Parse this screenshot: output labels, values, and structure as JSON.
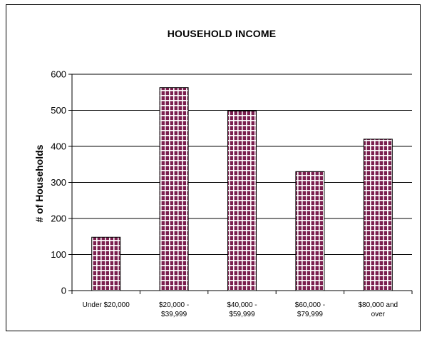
{
  "chart_data": {
    "type": "bar",
    "title": "HOUSEHOLD  INCOME",
    "xlabel": "",
    "ylabel": "# of Households",
    "categories": [
      [
        "Under $20,000"
      ],
      [
        "$20,000 -",
        "$39,999"
      ],
      [
        "$40,000 -",
        "$59,999"
      ],
      [
        "$60,000 -",
        "$79,999"
      ],
      [
        "$80,000 and",
        "over"
      ]
    ],
    "values": [
      148,
      563,
      498,
      330,
      420
    ],
    "ylim": [
      0,
      600
    ],
    "yticks": [
      0,
      100,
      200,
      300,
      400,
      500,
      600
    ],
    "grid": true,
    "legend": "none",
    "colors": {
      "bar_fill": "#7b1f4f",
      "bar_grid_lines": "#ffffff",
      "axis": "#000000"
    }
  }
}
